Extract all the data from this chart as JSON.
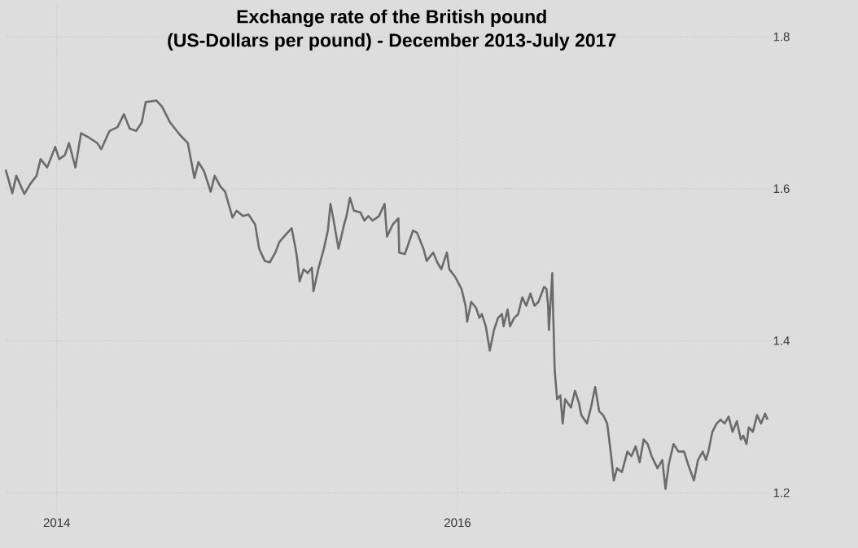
{
  "chart_data": {
    "type": "line",
    "title": "Exchange rate of the British pound",
    "subtitle": "(US-Dollars per pound) - December 2013-July 2017",
    "xlim": [
      2013.745,
      2017.56
    ],
    "ylim": [
      1.17,
      1.843
    ],
    "xticks": [
      2014,
      2016
    ],
    "yticks": [
      1.2,
      1.4,
      1.6,
      1.8
    ],
    "grid": true,
    "series": [
      {
        "color": "#6b6b6b",
        "x": [
          2013.745,
          2013.778,
          2013.798,
          2013.838,
          2013.867,
          2013.899,
          2013.919,
          2013.952,
          2013.992,
          2014.012,
          2014.04,
          2014.061,
          2014.093,
          2014.121,
          2014.162,
          2014.202,
          2014.222,
          2014.263,
          2014.303,
          2014.335,
          2014.364,
          2014.396,
          2014.424,
          2014.444,
          2014.497,
          2014.525,
          2014.566,
          2014.614,
          2014.654,
          2014.687,
          2014.707,
          2014.735,
          2014.768,
          2014.788,
          2014.816,
          2014.84,
          2014.877,
          2014.897,
          2014.929,
          2014.957,
          2014.99,
          2015.01,
          2015.038,
          2015.063,
          2015.091,
          2015.111,
          2015.151,
          2015.172,
          2015.192,
          2015.2,
          2015.212,
          2015.232,
          2015.252,
          2015.273,
          2015.281,
          2015.305,
          2015.333,
          2015.353,
          2015.366,
          2015.382,
          2015.406,
          2015.434,
          2015.446,
          2015.463,
          2015.483,
          2015.515,
          2015.535,
          2015.555,
          2015.576,
          2015.608,
          2015.636,
          2015.648,
          2015.677,
          2015.705,
          2015.709,
          2015.737,
          2015.778,
          2015.798,
          2015.83,
          2015.846,
          2015.879,
          2015.899,
          2015.919,
          2015.947,
          2015.959,
          2015.988,
          2016.02,
          2016.04,
          2016.048,
          2016.068,
          2016.093,
          2016.109,
          2016.121,
          2016.141,
          2016.161,
          2016.182,
          2016.202,
          2016.222,
          2016.23,
          2016.25,
          2016.262,
          2016.283,
          2016.303,
          2016.323,
          2016.343,
          2016.364,
          2016.384,
          2016.404,
          2016.432,
          2016.444,
          2016.452,
          2016.456,
          2016.473,
          2016.477,
          2016.485,
          2016.497,
          2016.513,
          2016.525,
          2016.537,
          2016.566,
          2016.586,
          2016.606,
          2016.618,
          2016.646,
          2016.666,
          2016.687,
          2016.707,
          2016.727,
          2016.747,
          2016.767,
          2016.78,
          2016.796,
          2016.82,
          2016.848,
          2016.868,
          2016.889,
          2016.909,
          2016.929,
          2016.949,
          2016.969,
          2016.998,
          2017.022,
          2017.038,
          2017.054,
          2017.078,
          2017.103,
          2017.131,
          2017.151,
          2017.18,
          2017.2,
          2017.224,
          2017.24,
          2017.252,
          2017.272,
          2017.293,
          2017.313,
          2017.333,
          2017.353,
          2017.373,
          2017.394,
          2017.414,
          2017.426,
          2017.442,
          2017.454,
          2017.474,
          2017.495,
          2017.515,
          2017.535,
          2017.547
        ],
        "values": [
          1.625,
          1.594,
          1.617,
          1.593,
          1.606,
          1.617,
          1.639,
          1.628,
          1.655,
          1.639,
          1.644,
          1.66,
          1.628,
          1.673,
          1.667,
          1.66,
          1.652,
          1.676,
          1.681,
          1.698,
          1.679,
          1.676,
          1.687,
          1.714,
          1.716,
          1.708,
          1.687,
          1.671,
          1.66,
          1.614,
          1.635,
          1.623,
          1.596,
          1.617,
          1.603,
          1.596,
          1.562,
          1.571,
          1.564,
          1.566,
          1.553,
          1.521,
          1.505,
          1.503,
          1.516,
          1.53,
          1.542,
          1.548,
          1.521,
          1.507,
          1.478,
          1.494,
          1.489,
          1.496,
          1.465,
          1.494,
          1.521,
          1.545,
          1.58,
          1.558,
          1.521,
          1.553,
          1.564,
          1.588,
          1.571,
          1.569,
          1.558,
          1.564,
          1.558,
          1.564,
          1.58,
          1.537,
          1.553,
          1.561,
          1.516,
          1.514,
          1.545,
          1.542,
          1.521,
          1.505,
          1.516,
          1.503,
          1.494,
          1.516,
          1.494,
          1.484,
          1.468,
          1.446,
          1.425,
          1.451,
          1.443,
          1.43,
          1.435,
          1.419,
          1.387,
          1.414,
          1.43,
          1.435,
          1.419,
          1.441,
          1.419,
          1.43,
          1.435,
          1.457,
          1.446,
          1.462,
          1.446,
          1.451,
          1.471,
          1.468,
          1.446,
          1.414,
          1.489,
          1.441,
          1.361,
          1.323,
          1.328,
          1.291,
          1.323,
          1.312,
          1.334,
          1.318,
          1.302,
          1.291,
          1.312,
          1.339,
          1.307,
          1.302,
          1.291,
          1.248,
          1.216,
          1.232,
          1.227,
          1.254,
          1.248,
          1.261,
          1.24,
          1.27,
          1.264,
          1.248,
          1.232,
          1.243,
          1.205,
          1.237,
          1.264,
          1.254,
          1.254,
          1.237,
          1.216,
          1.243,
          1.254,
          1.243,
          1.254,
          1.28,
          1.291,
          1.296,
          1.291,
          1.3,
          1.28,
          1.294,
          1.27,
          1.275,
          1.264,
          1.286,
          1.28,
          1.302,
          1.291,
          1.304,
          1.296
        ]
      }
    ]
  }
}
